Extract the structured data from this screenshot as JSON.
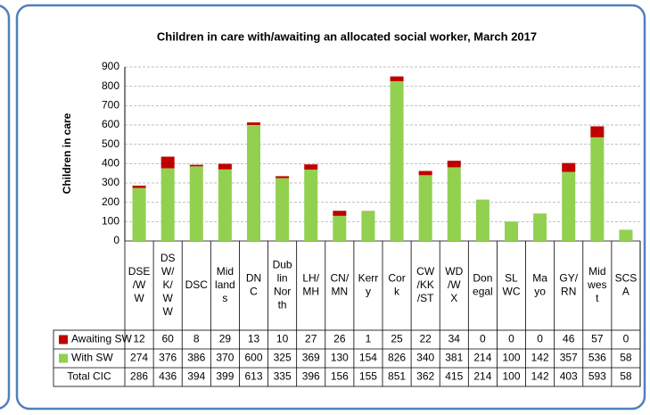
{
  "chart_data": {
    "type": "stacked_bar",
    "title": "Children in care with/awaiting  an allocated social worker, March 2017",
    "y_label": "Children  in  care",
    "categories": [
      "DSE\n/W\nW",
      "DS\nW/\nK/\nW\nW",
      "DSC",
      "Mid\nland\ns",
      "DN\nC",
      "Dub\nlin\nNor\nth",
      "LH/\nMH",
      "CN/\nMN",
      "Kerr\ny",
      "Cor\nk",
      "CW\n/KK\n/ST",
      "WD\n/W\nX",
      "Don\negal",
      "SL\nWC",
      "Ma\nyo",
      "GY/\nRN",
      "Mid\nwes\nt",
      "SCS\nA"
    ],
    "series": [
      {
        "name": "Awaiting SW",
        "color": "#c00000",
        "values": [
          12,
          60,
          8,
          29,
          13,
          10,
          27,
          26,
          1,
          25,
          22,
          34,
          0,
          0,
          0,
          46,
          57,
          0
        ]
      },
      {
        "name": "With SW",
        "color": "#92d050",
        "values": [
          274,
          376,
          386,
          370,
          600,
          325,
          369,
          130,
          154,
          826,
          340,
          381,
          214,
          100,
          142,
          357,
          536,
          58
        ]
      }
    ],
    "totals": {
      "name": "Total  CIC",
      "values": [
        286,
        436,
        394,
        399,
        613,
        335,
        396,
        156,
        155,
        851,
        362,
        415,
        214,
        100,
        142,
        403,
        593,
        58
      ]
    },
    "ylim": [
      0,
      900
    ],
    "yticks": [
      0,
      100,
      200,
      300,
      400,
      500,
      600,
      700,
      800,
      900
    ],
    "grid": true
  }
}
